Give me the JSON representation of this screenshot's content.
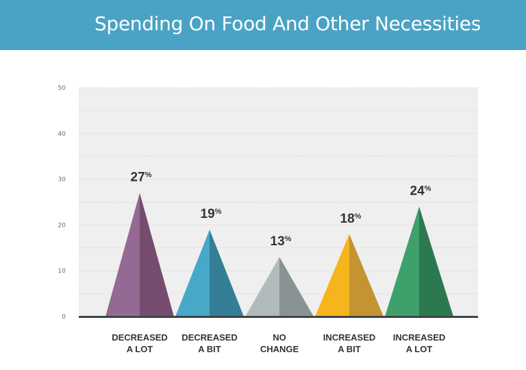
{
  "header": {
    "title": "Spending On Food And Other Necessities"
  },
  "chart_data": {
    "type": "bar",
    "mark": "triangle",
    "title": "Spending On Food And Other Necessities",
    "xlabel": "",
    "ylabel": "",
    "ylim": [
      0,
      50
    ],
    "yticks": [
      "0",
      "10",
      "20",
      "30",
      "40",
      "50"
    ],
    "grid": true,
    "unit_suffix": "%",
    "categories": [
      [
        "DECREASED",
        "A LOT"
      ],
      [
        "DECREASED",
        "A BIT"
      ],
      [
        "NO",
        "CHANGE"
      ],
      [
        "INCREASED",
        "A BIT"
      ],
      [
        "INCREASED",
        "A LOT"
      ]
    ],
    "values": [
      27,
      19,
      13,
      18,
      24
    ],
    "value_labels": [
      "27",
      "19",
      "13",
      "18",
      "24"
    ],
    "colors": [
      {
        "light": "#946a94",
        "dark": "#764c6f"
      },
      {
        "light": "#48a8c8",
        "dark": "#357e97"
      },
      {
        "light": "#b2bbbb",
        "dark": "#8a9393"
      },
      {
        "light": "#f6b41d",
        "dark": "#c49432"
      },
      {
        "light": "#3ea06a",
        "dark": "#2c7950"
      }
    ]
  }
}
